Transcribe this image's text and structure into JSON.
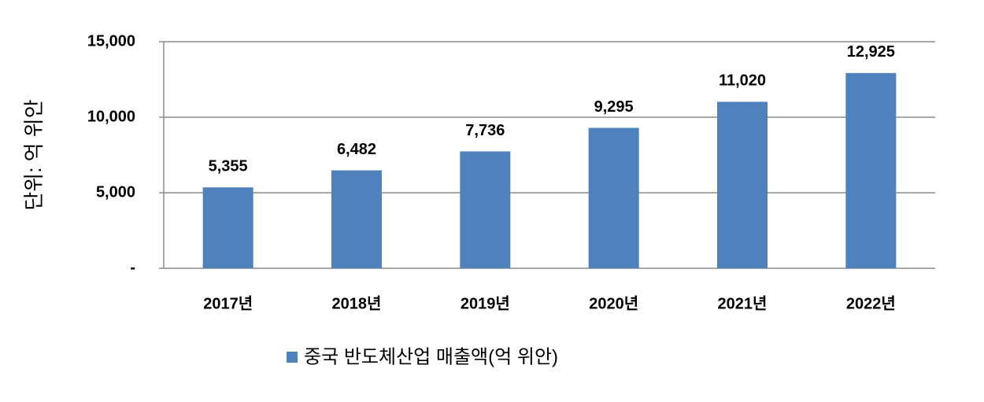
{
  "chart_data": {
    "type": "bar",
    "y_axis_label": "단위: 억 위안",
    "categories": [
      "2017년",
      "2018년",
      "2019년",
      "2020년",
      "2021년",
      "2022년"
    ],
    "series": [
      {
        "name": "중국 반도체산업 매출액(억 위안)",
        "color": "#4f81bd",
        "values": [
          5355,
          6482,
          7736,
          9295,
          11020,
          12925
        ],
        "value_labels": [
          "5,355",
          "6,482",
          "7,736",
          "9,295",
          "11,020",
          "12,925"
        ]
      }
    ],
    "ylim": [
      0,
      15000
    ],
    "yticks": [
      {
        "value": 0,
        "label": "-"
      },
      {
        "value": 5000,
        "label": "5,000"
      },
      {
        "value": 10000,
        "label": "10,000"
      },
      {
        "value": 15000,
        "label": "15,000"
      }
    ],
    "grid": true,
    "legend": "bottom"
  }
}
